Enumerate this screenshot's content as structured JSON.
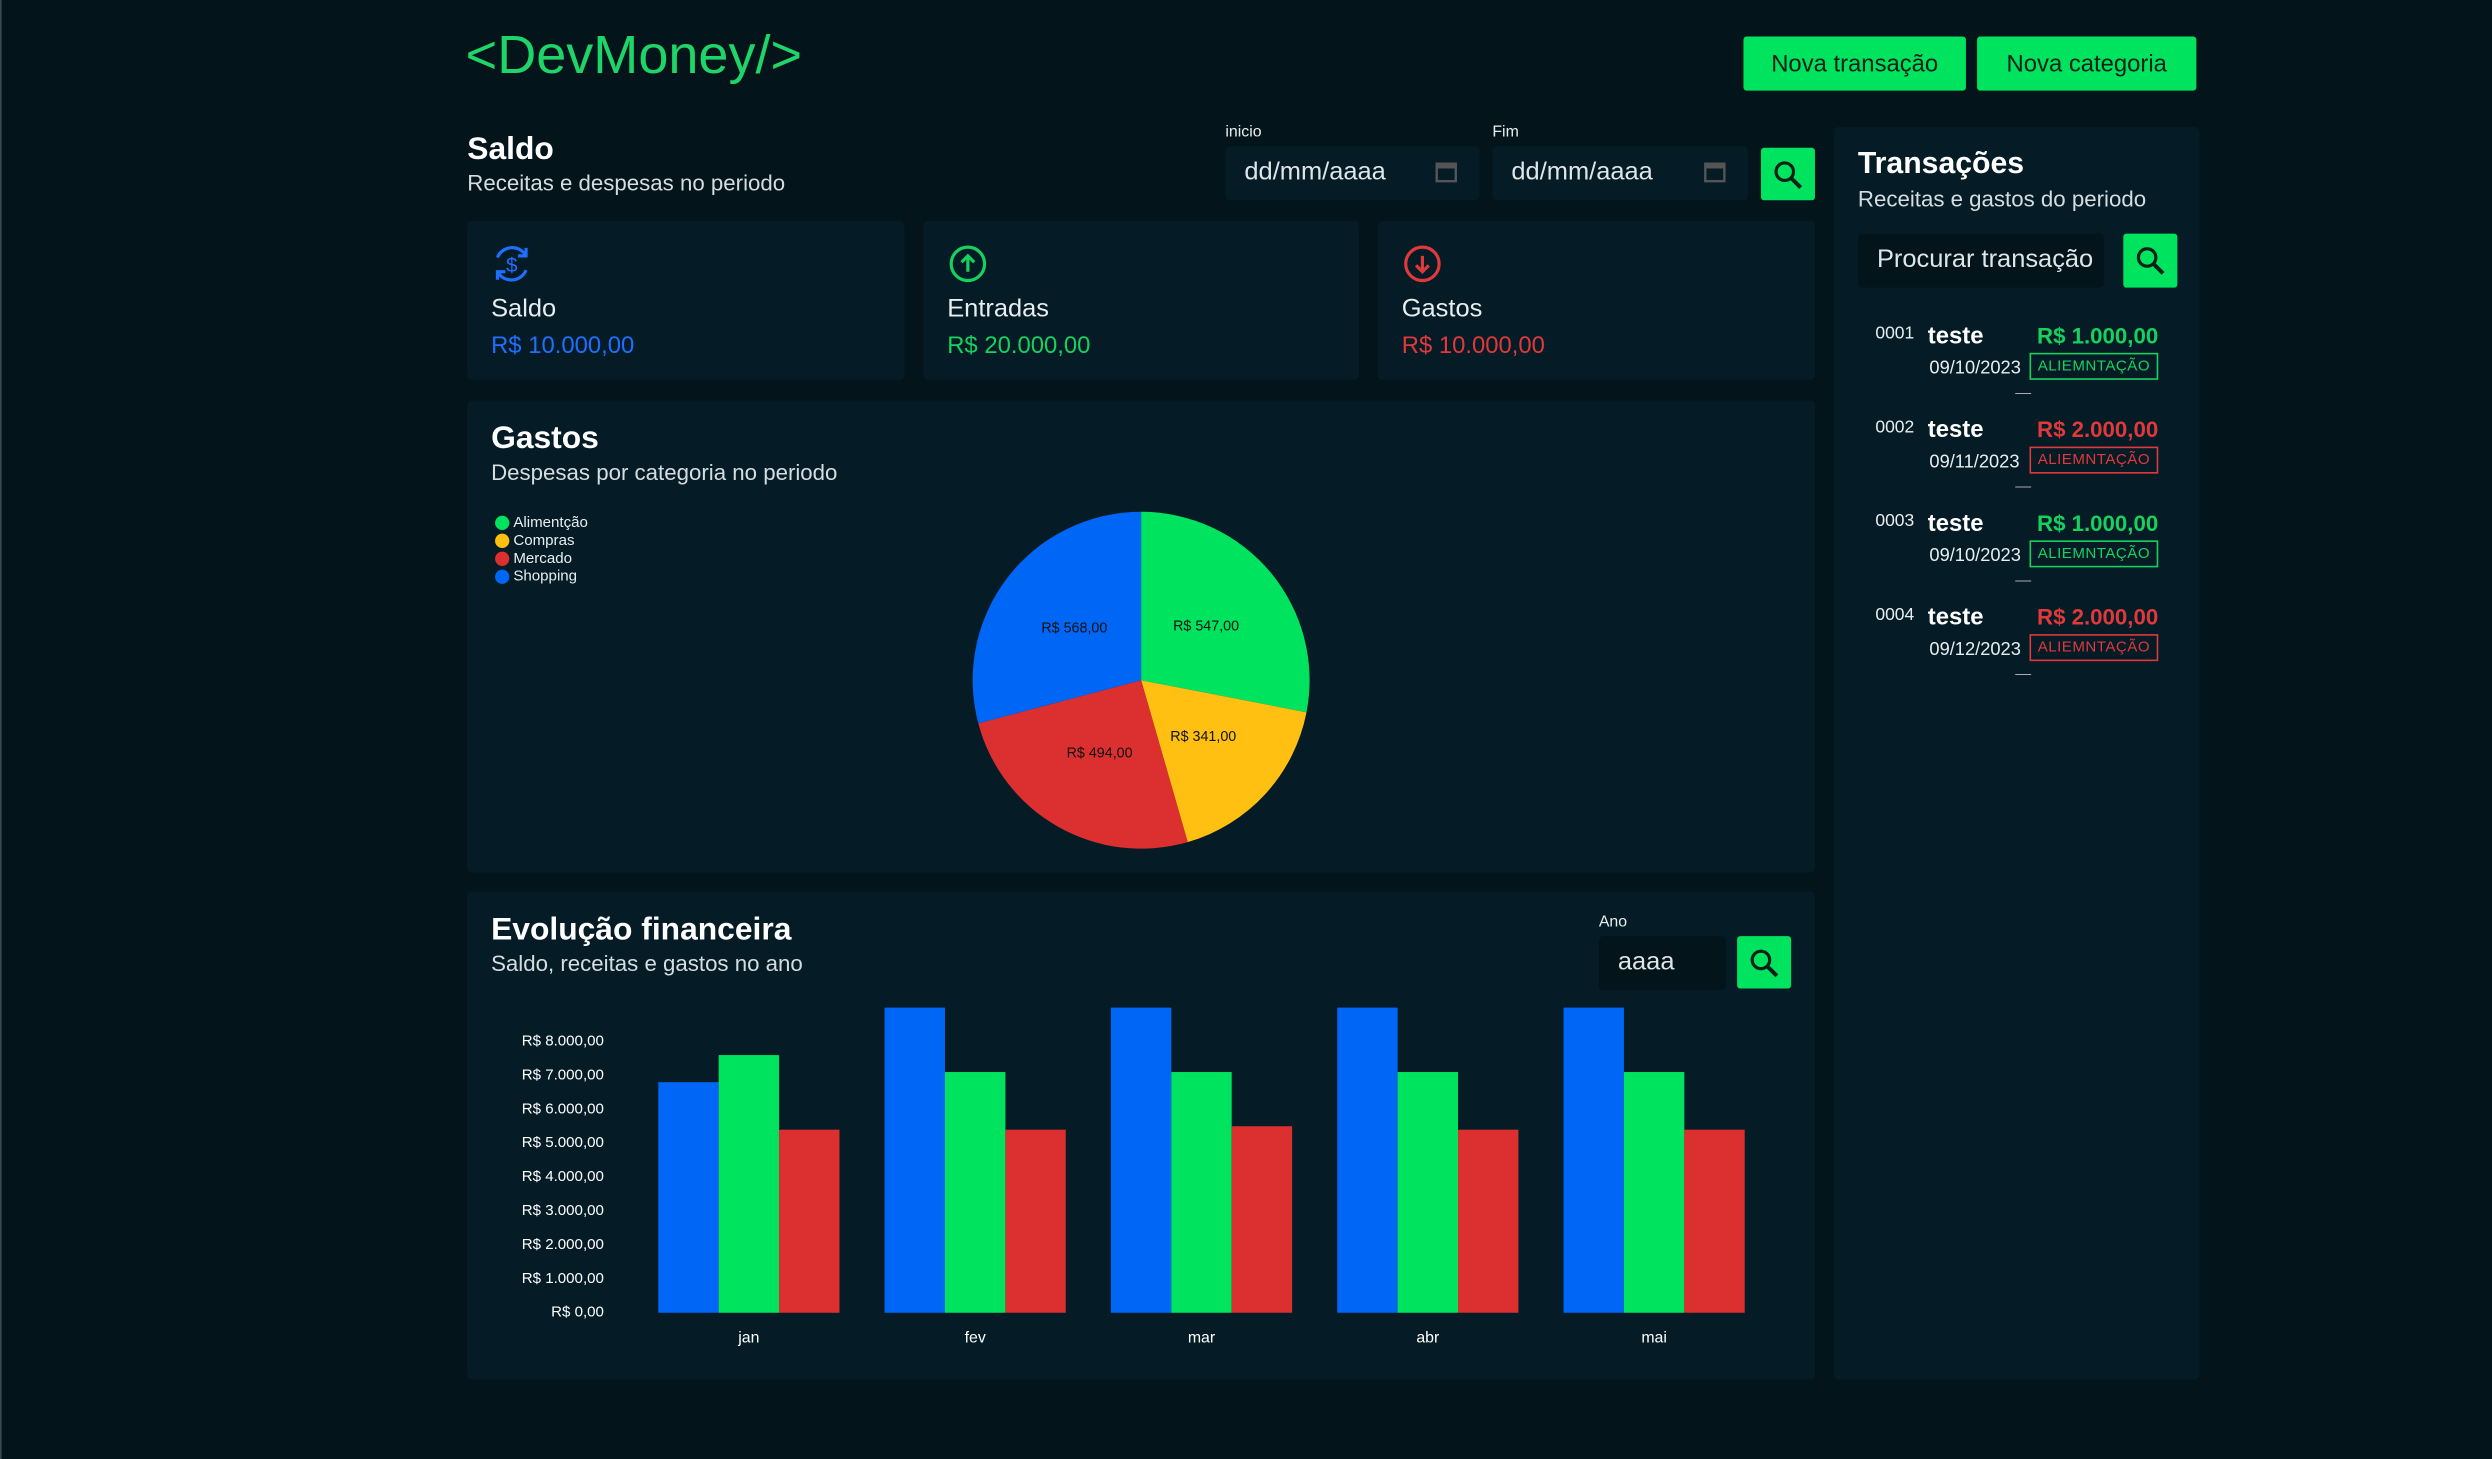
{
  "header": {
    "logo": "<DevMoney/>",
    "buttons": [
      "Nova transação",
      "Nova categoria"
    ]
  },
  "saldo": {
    "title": "Saldo",
    "subtitle": "Receitas e despesas no periodo",
    "start_label": "inicio",
    "end_label": "Fim",
    "date_placeholder": "dd/mm/aaaa"
  },
  "cards": [
    {
      "label": "Saldo",
      "value": "R$ 10.000,00",
      "color": "#1f6fff"
    },
    {
      "label": "Entradas",
      "value": "R$ 20.000,00",
      "color": "#17d15f"
    },
    {
      "label": "Gastos",
      "value": "R$ 10.000,00",
      "color": "#e0393b"
    }
  ],
  "gastos_chart": {
    "type": "pie",
    "title": "Gastos",
    "subtitle": "Despesas por categoria no periodo",
    "categories": [
      "Alimentção",
      "Compras",
      "Mercado",
      "Shopping"
    ],
    "values": [
      547,
      341,
      494,
      568
    ],
    "value_labels": [
      "R$ 547,00",
      "R$ 341,00",
      "R$ 494,00",
      "R$ 568,00"
    ],
    "colors": [
      "#00e35f",
      "#ffc012",
      "#dc3030",
      "#0066f5"
    ]
  },
  "evolucao_chart": {
    "type": "bar",
    "title": "Evolução financeira",
    "subtitle": "Saldo, receitas e gastos no ano",
    "year_label": "Ano",
    "year_placeholder": "aaaa",
    "categories": [
      "jan",
      "fev",
      "mar",
      "abr",
      "mai"
    ],
    "series": [
      {
        "color": "#0066f5",
        "values": [
          6800,
          9000,
          9000,
          9000,
          9000
        ]
      },
      {
        "color": "#00e35f",
        "values": [
          7600,
          7100,
          7100,
          7100,
          7100
        ]
      },
      {
        "color": "#dc3030",
        "values": [
          5400,
          5400,
          5500,
          5400,
          5400
        ]
      }
    ],
    "ylim": [
      0,
      9000
    ],
    "yticks": [
      {
        "value": 0,
        "label": "R$ 0,00"
      },
      {
        "value": 1000,
        "label": "R$ 1.000,00"
      },
      {
        "value": 2000,
        "label": "R$ 2.000,00"
      },
      {
        "value": 3000,
        "label": "R$ 3.000,00"
      },
      {
        "value": 4000,
        "label": "R$ 4.000,00"
      },
      {
        "value": 5000,
        "label": "R$ 5.000,00"
      },
      {
        "value": 6000,
        "label": "R$ 6.000,00"
      },
      {
        "value": 7000,
        "label": "R$ 7.000,00"
      },
      {
        "value": 8000,
        "label": "R$ 8.000,00"
      }
    ]
  },
  "transactions": {
    "title": "Transações",
    "subtitle": "Receitas e gastos do periodo",
    "search_placeholder": "Procurar transação",
    "items": [
      {
        "id": "0001",
        "name": "teste",
        "amount": "R$ 1.000,00",
        "date": "09/10/2023",
        "category": "ALIEMNTAÇÃO",
        "color": "#17d15f",
        "separator": "—"
      },
      {
        "id": "0002",
        "name": "teste",
        "amount": "R$ 2.000,00",
        "date": "09/11/2023",
        "category": "ALIEMNTAÇÃO",
        "color": "#e0393b",
        "separator": "—"
      },
      {
        "id": "0003",
        "name": "teste",
        "amount": "R$ 1.000,00",
        "date": "09/10/2023",
        "category": "ALIEMNTAÇÃO",
        "color": "#17d15f",
        "separator": "—"
      },
      {
        "id": "0004",
        "name": "teste",
        "amount": "R$ 2.000,00",
        "date": "09/12/2023",
        "category": "ALIEMNTAÇÃO",
        "color": "#e0393b",
        "separator": "—"
      }
    ]
  }
}
